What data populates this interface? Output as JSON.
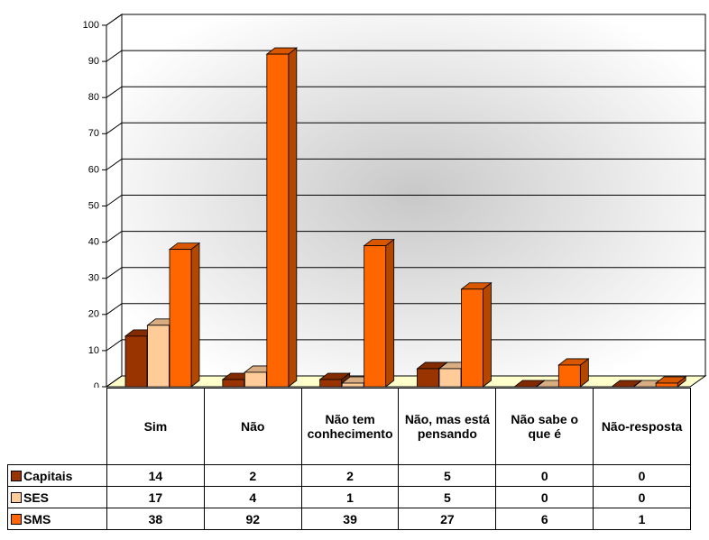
{
  "chart_data": {
    "type": "bar3d",
    "categories": [
      "Sim",
      "Não",
      "Não tem conhecimento",
      "Não, mas está pensando",
      "Não sabe o que é",
      "Não-resposta"
    ],
    "series": [
      {
        "name": "Capitais",
        "color": "#993300",
        "values": [
          14,
          2,
          2,
          5,
          0,
          0
        ]
      },
      {
        "name": "SES",
        "color": "#ffcc99",
        "values": [
          17,
          4,
          1,
          5,
          0,
          0
        ]
      },
      {
        "name": "SMS",
        "color": "#ff6600",
        "values": [
          38,
          92,
          39,
          27,
          6,
          1
        ]
      }
    ],
    "ylim": [
      0,
      100
    ],
    "yticks": [
      0,
      10,
      20,
      30,
      40,
      50,
      60,
      70,
      80,
      90,
      100
    ],
    "grid": true
  }
}
